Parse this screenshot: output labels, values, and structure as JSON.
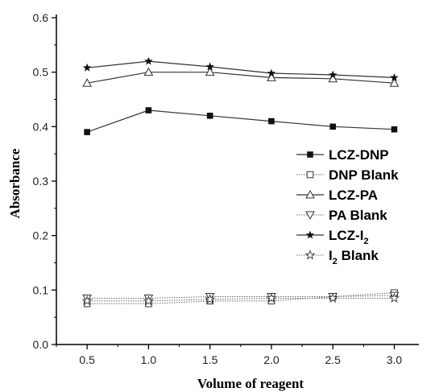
{
  "chart_data": {
    "type": "line",
    "xlabel": "Volume of reagent",
    "ylabel": "Absorbance",
    "xlim": [
      0.25,
      3.2
    ],
    "ylim": [
      0.0,
      0.6
    ],
    "x_ticks": [
      "0.5",
      "1.0",
      "1.5",
      "2.0",
      "2.5",
      "3.0"
    ],
    "y_ticks": [
      "0.0",
      "0.1",
      "0.2",
      "0.3",
      "0.4",
      "0.5",
      "0.6"
    ],
    "grid": false,
    "legend_position": "right",
    "x": [
      0.5,
      1.0,
      1.5,
      2.0,
      2.5,
      3.0
    ],
    "series": [
      {
        "name": "LCZ-DNP",
        "marker": "filled-square",
        "line": "solid",
        "values": [
          0.39,
          0.43,
          0.42,
          0.41,
          0.4,
          0.395
        ]
      },
      {
        "name": "DNP Blank",
        "marker": "open-square",
        "line": "dotted",
        "values": [
          0.075,
          0.075,
          0.08,
          0.08,
          0.088,
          0.095
        ]
      },
      {
        "name": "LCZ-PA",
        "marker": "open-triangle-up",
        "line": "solid",
        "values": [
          0.48,
          0.5,
          0.5,
          0.49,
          0.488,
          0.48
        ]
      },
      {
        "name": "PA Blank",
        "marker": "open-triangle-down",
        "line": "dotted",
        "values": [
          0.085,
          0.085,
          0.088,
          0.088,
          0.088,
          0.09
        ]
      },
      {
        "name": "LCZ-I2",
        "label_main": "LCZ-I",
        "label_sub": "2",
        "marker": "filled-star",
        "line": "solid",
        "values": [
          0.508,
          0.52,
          0.51,
          0.498,
          0.495,
          0.49
        ]
      },
      {
        "name": "I2 Blank",
        "label_main": "I",
        "label_sub": "2",
        "label_rest": " Blank",
        "marker": "open-star",
        "line": "dotted",
        "values": [
          0.08,
          0.08,
          0.083,
          0.085,
          0.085,
          0.085
        ]
      }
    ]
  }
}
